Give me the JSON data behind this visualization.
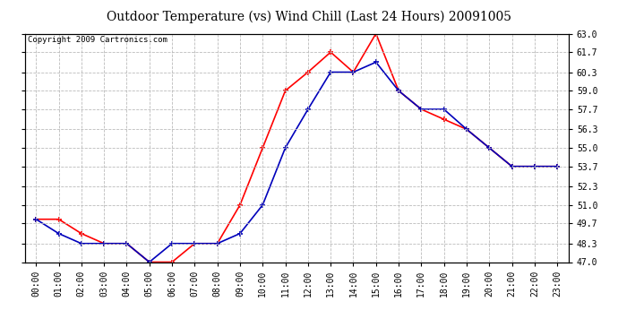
{
  "title": "Outdoor Temperature (vs) Wind Chill (Last 24 Hours) 20091005",
  "copyright": "Copyright 2009 Cartronics.com",
  "hours": [
    "00:00",
    "01:00",
    "02:00",
    "03:00",
    "04:00",
    "05:00",
    "06:00",
    "07:00",
    "08:00",
    "09:00",
    "10:00",
    "11:00",
    "12:00",
    "13:00",
    "14:00",
    "15:00",
    "16:00",
    "17:00",
    "18:00",
    "19:00",
    "20:00",
    "21:00",
    "22:00",
    "23:00"
  ],
  "temp": [
    50.0,
    50.0,
    49.0,
    48.3,
    48.3,
    47.0,
    47.0,
    48.3,
    48.3,
    51.0,
    55.0,
    59.0,
    60.3,
    61.7,
    60.3,
    63.0,
    59.0,
    57.7,
    57.0,
    56.3,
    55.0,
    53.7,
    53.7,
    53.7
  ],
  "windchill": [
    50.0,
    49.0,
    48.3,
    48.3,
    48.3,
    47.0,
    48.3,
    48.3,
    48.3,
    49.0,
    51.0,
    55.0,
    57.7,
    60.3,
    60.3,
    61.0,
    59.0,
    57.7,
    57.7,
    56.3,
    55.0,
    53.7,
    53.7,
    53.7
  ],
  "temp_color": "#ff0000",
  "windchill_color": "#0000bb",
  "marker": "+",
  "markersize": 5,
  "markeredgewidth": 1.2,
  "linewidth": 1.2,
  "ylim": [
    47.0,
    63.0
  ],
  "yticks": [
    47.0,
    48.3,
    49.7,
    51.0,
    52.3,
    53.7,
    55.0,
    56.3,
    57.7,
    59.0,
    60.3,
    61.7,
    63.0
  ],
  "ytick_labels": [
    "47.0",
    "48.3",
    "49.7",
    "51.0",
    "52.3",
    "53.7",
    "55.0",
    "56.3",
    "57.7",
    "59.0",
    "60.3",
    "61.7",
    "63.0"
  ],
  "grid_color": "#bbbbbb",
  "grid_linestyle": "--",
  "grid_linewidth": 0.6,
  "background_color": "#ffffff",
  "title_fontsize": 10,
  "copyright_fontsize": 6.5,
  "tick_fontsize": 7,
  "xlabel_rotation": 90
}
